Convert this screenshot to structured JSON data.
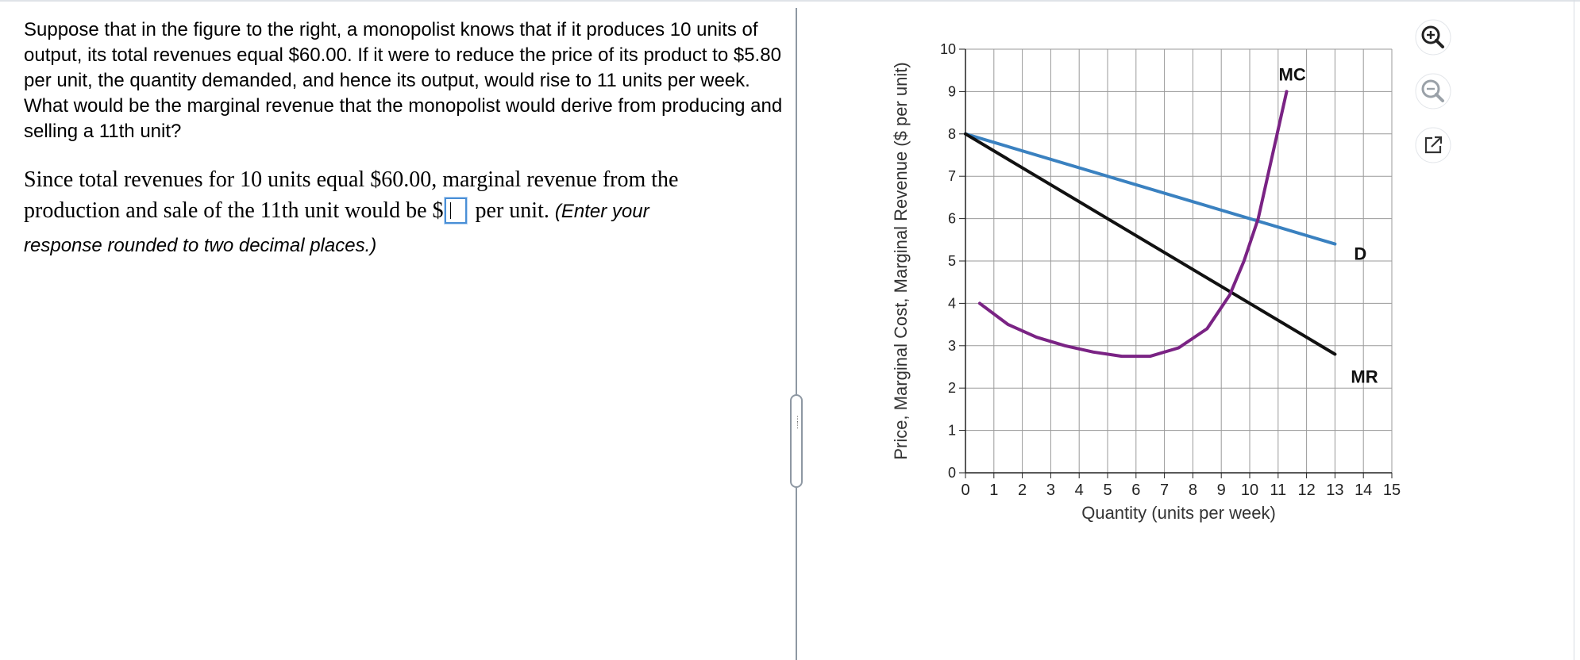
{
  "question": {
    "text": "Suppose that in the figure to the right, a monopolist knows that if it produces 10 units of output, its total revenues equal $60.00. If it were to reduce the price of its product to $5.80 per unit, the quantity demanded, and hence its output, would rise to 11 units per week. What would be the marginal revenue that the monopolist would derive from producing and selling a 11th unit?"
  },
  "answer": {
    "line1": "Since total revenues for 10 units equal $60.00, marginal revenue from the",
    "line2_prefix": "production and sale of the 11th unit would be $",
    "line2_suffix": " per unit. ",
    "hint_part1": "(Enter your",
    "hint_part2": "response rounded to two decimal places.)",
    "input_value": ""
  },
  "splitter": {
    "grip": "⋮"
  },
  "tools": {
    "zoom_in": "zoom-in-icon",
    "zoom_out": "zoom-out-icon",
    "popout": "external-link-icon"
  },
  "colors": {
    "demand": "#3a81c0",
    "marginal_revenue": "#111111",
    "marginal_cost": "#7a2384",
    "grid": "#9a9a9a",
    "accent_input": "#4a8fd6"
  },
  "chart_data": {
    "type": "line",
    "xlabel": "Quantity (units per week)",
    "ylabel": "Price, Marginal Cost, Marginal Revenue ($ per unit)",
    "xlim": [
      0,
      15
    ],
    "ylim": [
      0,
      10
    ],
    "x_ticks": [
      "0",
      "1",
      "2",
      "3",
      "4",
      "5",
      "6",
      "7",
      "8",
      "9",
      "10",
      "11",
      "12",
      "13",
      "14",
      "15"
    ],
    "y_ticks": [
      "0",
      "1",
      "2",
      "3",
      "4",
      "5",
      "6",
      "7",
      "8",
      "9",
      "10"
    ],
    "grid": true,
    "series": [
      {
        "name": "D",
        "color": "#3a81c0",
        "points": [
          [
            0,
            8.0
          ],
          [
            13,
            5.4
          ]
        ]
      },
      {
        "name": "MR",
        "color": "#111111",
        "points": [
          [
            0,
            8.0
          ],
          [
            13,
            2.8
          ]
        ]
      },
      {
        "name": "MC",
        "color": "#7a2384",
        "points": [
          [
            0.5,
            4.0
          ],
          [
            1.5,
            3.5
          ],
          [
            2.5,
            3.2
          ],
          [
            3.5,
            3.0
          ],
          [
            4.5,
            2.85
          ],
          [
            5.5,
            2.75
          ],
          [
            6.5,
            2.75
          ],
          [
            7.5,
            2.95
          ],
          [
            8.5,
            3.4
          ],
          [
            9.3,
            4.2
          ],
          [
            9.8,
            5.0
          ],
          [
            10.3,
            6.0
          ],
          [
            10.8,
            7.5
          ],
          [
            11.3,
            9.0
          ]
        ]
      }
    ],
    "legend": "inline labels at line ends"
  }
}
